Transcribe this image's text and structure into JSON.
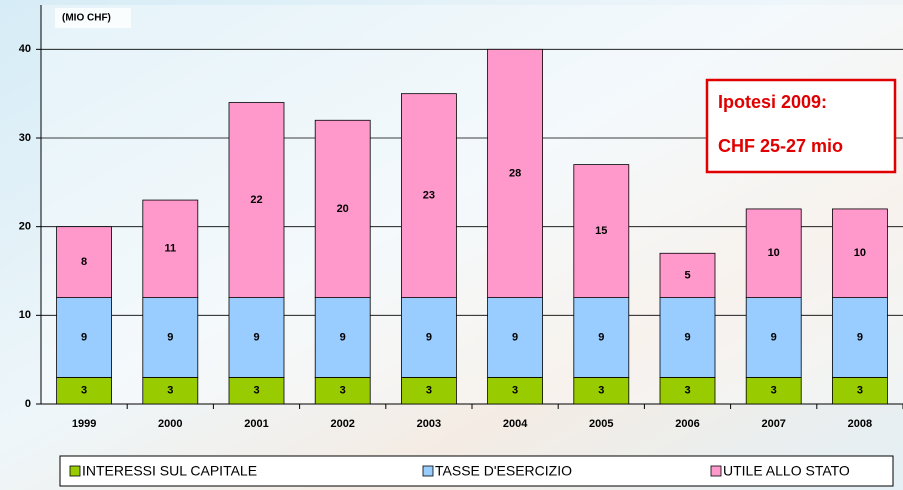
{
  "chart_data": {
    "type": "stacked-bar",
    "y_label": "(MIO CHF)",
    "categories": [
      "1999",
      "2000",
      "2001",
      "2002",
      "2003",
      "2004",
      "2005",
      "2006",
      "2007",
      "2008"
    ],
    "series": [
      {
        "name": "INTERESSI SUL CAPITALE",
        "color": "#99cc00",
        "values": [
          3,
          3,
          3,
          3,
          3,
          3,
          3,
          3,
          3,
          3
        ]
      },
      {
        "name": "TASSE D'ESERCIZIO",
        "color": "#99ccff",
        "values": [
          9,
          9,
          9,
          9,
          9,
          9,
          9,
          9,
          9,
          9
        ]
      },
      {
        "name": "UTILE ALLO STATO",
        "color": "#ff99cc",
        "values": [
          8,
          11,
          22,
          20,
          23,
          28,
          15,
          5,
          10,
          10
        ]
      }
    ],
    "ylim": [
      0,
      45
    ],
    "yticks": [
      0,
      10,
      20,
      30,
      40
    ],
    "grid": true,
    "legend": "bottom",
    "annotations": [
      "Ipotesi 2009:",
      "CHF 25-27 mio"
    ]
  }
}
